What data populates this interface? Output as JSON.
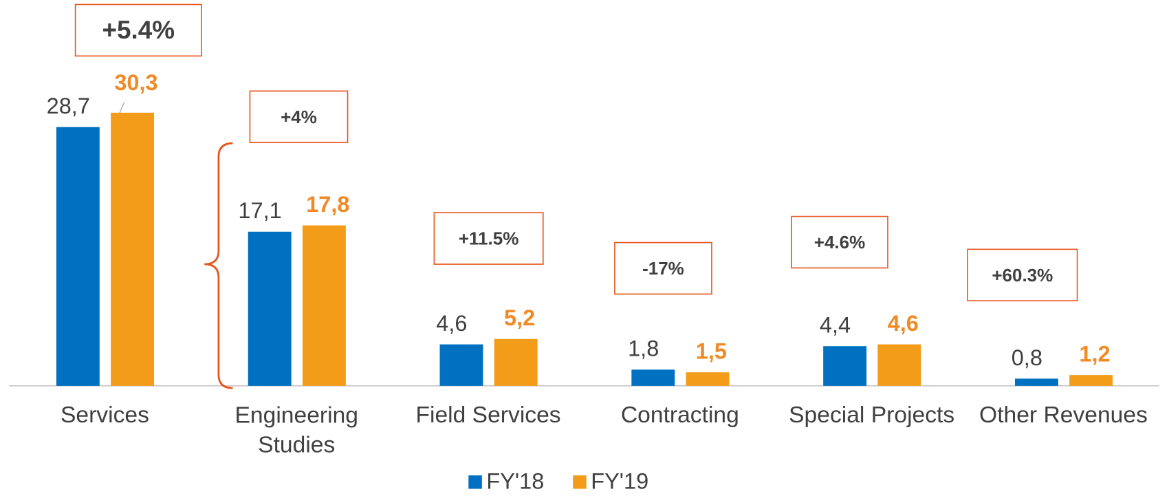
{
  "chart_data": {
    "type": "bar",
    "categories": [
      "Services",
      "Engineering Studies",
      "Field Services",
      "Contracting",
      "Special Projects",
      "Other Revenues"
    ],
    "series": [
      {
        "name": "FY'18",
        "color": "#0070c0",
        "values": [
          28.7,
          17.1,
          4.6,
          1.8,
          4.4,
          0.8
        ],
        "value_labels": [
          "28,7",
          "17,1",
          "4,6",
          "1,8",
          "4,4",
          "0,8"
        ]
      },
      {
        "name": "FY'19",
        "color": "#f39c1a",
        "values": [
          30.3,
          17.8,
          5.2,
          1.5,
          4.6,
          1.2
        ],
        "value_labels": [
          "30,3",
          "17,8",
          "5,2",
          "1,5",
          "4,6",
          "1,2"
        ]
      }
    ],
    "annotations": [
      "+5.4%",
      "+4%",
      "+11.5%",
      "-17%",
      "+4.6%",
      "+60.3%"
    ],
    "legend": "bottom"
  }
}
